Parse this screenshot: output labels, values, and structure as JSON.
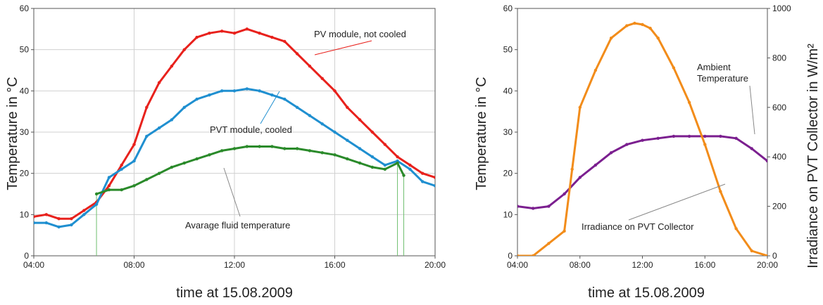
{
  "chart_data": [
    {
      "type": "line",
      "title": "",
      "xlabel": "time at 15.08.2009",
      "ylabel": "Temperature in °C",
      "xlim": [
        "04:00",
        "20:00"
      ],
      "ylim": [
        0,
        60
      ],
      "x_ticks": [
        "04:00",
        "08:00",
        "12:00",
        "16:00",
        "20:00"
      ],
      "y_ticks": [
        "0",
        "10",
        "20",
        "30",
        "40",
        "50",
        "60"
      ],
      "grid": true,
      "annotations": [
        "PV module, not cooled",
        "PVT module, cooled",
        "Avarage fluid temperature"
      ],
      "colors": {
        "pv": "#e8211c",
        "pvt": "#1f8fd0",
        "fluid": "#2a8a2a"
      },
      "series": [
        {
          "label_ref": "PV module, not cooled",
          "x": [
            "04:00",
            "04:30",
            "05:00",
            "05:30",
            "06:00",
            "06:30",
            "07:00",
            "07:30",
            "08:00",
            "08:30",
            "09:00",
            "09:30",
            "10:00",
            "10:30",
            "11:00",
            "11:30",
            "12:00",
            "12:30",
            "13:00",
            "13:30",
            "14:00",
            "14:30",
            "15:00",
            "15:30",
            "16:00",
            "16:30",
            "17:00",
            "17:30",
            "18:00",
            "18:30",
            "19:00",
            "19:30",
            "20:00"
          ],
          "values": [
            9.5,
            10,
            9,
            9,
            11,
            13,
            17,
            22,
            27,
            36,
            42,
            46,
            50,
            53,
            54,
            54.5,
            54,
            55,
            54,
            53,
            52,
            49,
            46,
            43,
            40,
            36,
            33,
            30,
            27,
            24,
            22,
            20,
            19
          ]
        },
        {
          "label_ref": "PVT module, cooled",
          "x": [
            "04:00",
            "04:30",
            "05:00",
            "05:30",
            "06:00",
            "06:30",
            "07:00",
            "07:30",
            "08:00",
            "08:30",
            "09:00",
            "09:30",
            "10:00",
            "10:30",
            "11:00",
            "11:30",
            "12:00",
            "12:30",
            "13:00",
            "13:30",
            "14:00",
            "14:30",
            "15:00",
            "15:30",
            "16:00",
            "16:30",
            "17:00",
            "17:30",
            "18:00",
            "18:30",
            "19:00",
            "19:30",
            "20:00"
          ],
          "values": [
            8,
            8,
            7,
            7.5,
            10,
            12.5,
            19,
            21,
            23,
            29,
            31,
            33,
            36,
            38,
            39,
            40,
            40,
            40.5,
            40,
            39,
            38,
            36,
            34,
            32,
            30,
            28,
            26,
            24,
            22,
            23,
            21,
            18,
            17
          ]
        },
        {
          "label_ref": "Avarage fluid temperature",
          "x": [
            "06:30",
            "07:00",
            "07:30",
            "08:00",
            "08:30",
            "09:00",
            "09:30",
            "10:00",
            "10:30",
            "11:00",
            "11:30",
            "12:00",
            "12:30",
            "13:00",
            "13:30",
            "14:00",
            "14:30",
            "15:00",
            "15:30",
            "16:00",
            "16:30",
            "17:00",
            "17:30",
            "18:00",
            "18:30",
            "18:45"
          ],
          "values": [
            15,
            16,
            16,
            17,
            18.5,
            20,
            21.5,
            22.5,
            23.5,
            24.5,
            25.5,
            26,
            26.5,
            26.5,
            26.5,
            26,
            26,
            25.5,
            25,
            24.5,
            23.5,
            22.5,
            21.5,
            21,
            22.5,
            19.5
          ]
        }
      ]
    },
    {
      "type": "line",
      "title": "",
      "xlabel": "time at 15.08.2009",
      "ylabel": "Temperature in °C",
      "y2label": "Irradiance on PVT Collector in W/m²",
      "xlim": [
        "04:00",
        "20:00"
      ],
      "ylim": [
        0,
        60
      ],
      "y2lim": [
        0,
        1000
      ],
      "x_ticks": [
        "04:00",
        "08:00",
        "12:00",
        "16:00",
        "20:00"
      ],
      "y_ticks": [
        "0",
        "10",
        "20",
        "30",
        "40",
        "50",
        "60"
      ],
      "y2_ticks": [
        "0",
        "200",
        "400",
        "600",
        "800",
        "1000"
      ],
      "grid": false,
      "annotations": [
        "Ambient",
        "Temperature",
        "Irradiance on PVT Collector"
      ],
      "colors": {
        "ambient": "#7b1f8f",
        "irradiance": "#f28c1a"
      },
      "series": [
        {
          "label_ref": "Ambient Temperature",
          "axis": "left",
          "x": [
            "04:00",
            "05:00",
            "06:00",
            "07:00",
            "08:00",
            "09:00",
            "10:00",
            "11:00",
            "12:00",
            "13:00",
            "14:00",
            "15:00",
            "16:00",
            "17:00",
            "18:00",
            "19:00",
            "20:00"
          ],
          "values": [
            12,
            11.5,
            12,
            15,
            19,
            22,
            25,
            27,
            28,
            28.5,
            29,
            29,
            29,
            29,
            28.5,
            26,
            23
          ]
        },
        {
          "label_ref": "Irradiance on PVT Collector",
          "axis": "right",
          "x": [
            "04:00",
            "05:00",
            "06:00",
            "07:00",
            "07:30",
            "08:00",
            "09:00",
            "10:00",
            "11:00",
            "11:30",
            "12:00",
            "12:30",
            "13:00",
            "14:00",
            "15:00",
            "16:00",
            "17:00",
            "18:00",
            "19:00",
            "20:00"
          ],
          "values": [
            0,
            0,
            50,
            100,
            350,
            600,
            750,
            880,
            930,
            940,
            935,
            920,
            880,
            760,
            620,
            450,
            260,
            110,
            20,
            0
          ]
        }
      ]
    }
  ]
}
